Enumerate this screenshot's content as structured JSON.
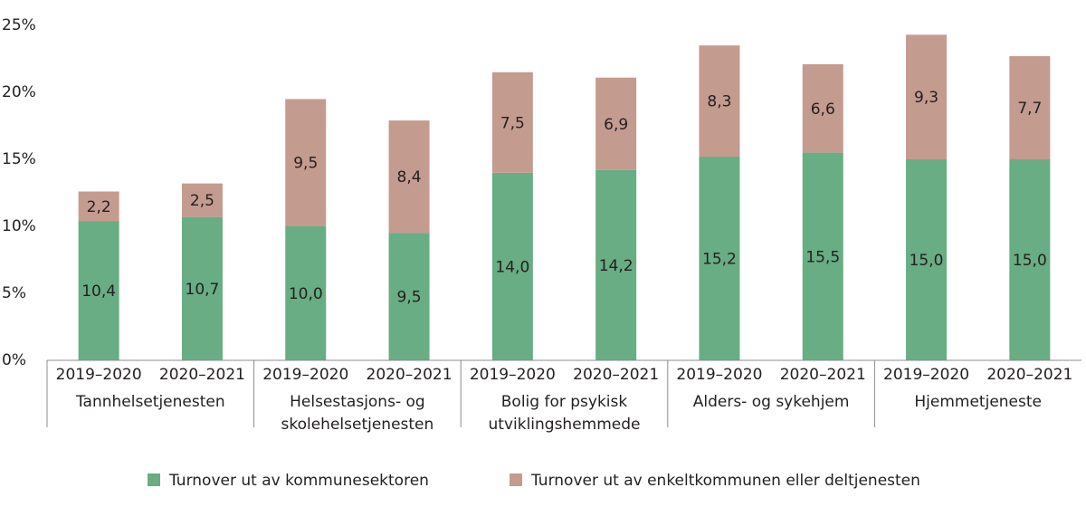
{
  "chart_data": {
    "type": "bar",
    "stacked": true,
    "categories": [
      "2019–2020",
      "2020–2021",
      "2019–2020",
      "2020–2021",
      "2019–2020",
      "2020–2021",
      "2019–2020",
      "2020–2021",
      "2019–2020",
      "2020–2021"
    ],
    "groups": [
      [
        "Tannhelsetjenesten"
      ],
      [
        "Helsestasjons- og",
        "skolehelsetjenesten"
      ],
      [
        "Bolig for psykisk",
        "utviklingshemmede"
      ],
      [
        "Alders- og sykehjem"
      ],
      [
        "Hjemmetjeneste"
      ]
    ],
    "series": [
      {
        "name": "Turnover ut av kommunesektoren",
        "color": "#68ad83",
        "values": [
          10.4,
          10.7,
          10.0,
          9.5,
          14.0,
          14.2,
          15.2,
          15.5,
          15.0,
          15.0
        ],
        "value_labels": [
          "10,4",
          "10,7",
          "10,0",
          "9,5",
          "14,0",
          "14,2",
          "15,2",
          "15,5",
          "15,0",
          "15,0"
        ]
      },
      {
        "name": "Turnover ut av enkeltkommunen eller deltjenesten",
        "color": "#c49b8f",
        "values": [
          2.2,
          2.5,
          9.5,
          8.4,
          7.5,
          6.9,
          8.3,
          6.6,
          9.3,
          7.7
        ],
        "value_labels": [
          "2,2",
          "2,5",
          "9,5",
          "8,4",
          "7,5",
          "6,9",
          "8,3",
          "6,6",
          "9,3",
          "7,7"
        ]
      }
    ],
    "ylim": [
      0,
      25
    ],
    "yticks": [
      {
        "value": 0,
        "label": "0%"
      },
      {
        "value": 5,
        "label": "5%"
      },
      {
        "value": 10,
        "label": "10%"
      },
      {
        "value": 15,
        "label": "15%"
      },
      {
        "value": 20,
        "label": "20%"
      },
      {
        "value": 25,
        "label": "25%"
      }
    ],
    "grid": false,
    "legend": "bottom"
  }
}
